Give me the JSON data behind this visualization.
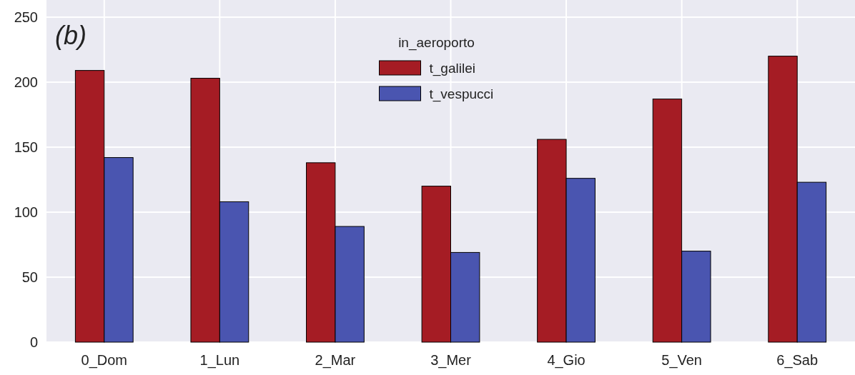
{
  "chart_data": {
    "type": "bar",
    "categories": [
      "0_Dom",
      "1_Lun",
      "2_Mar",
      "3_Mer",
      "4_Gio",
      "5_Ven",
      "6_Sab"
    ],
    "series": [
      {
        "name": "t_galilei",
        "color": "#a51c24",
        "values": [
          209,
          203,
          138,
          120,
          156,
          187,
          220
        ]
      },
      {
        "name": "t_vespucci",
        "color": "#4a55b0",
        "values": [
          142,
          108,
          89,
          69,
          126,
          70,
          123
        ]
      }
    ],
    "ylim": [
      0,
      250
    ],
    "yticks": [
      0,
      50,
      100,
      150,
      200,
      250
    ],
    "grid": true,
    "legend": "top",
    "legend_title": "in_aeroporto",
    "annotations": [
      "(b)"
    ]
  }
}
